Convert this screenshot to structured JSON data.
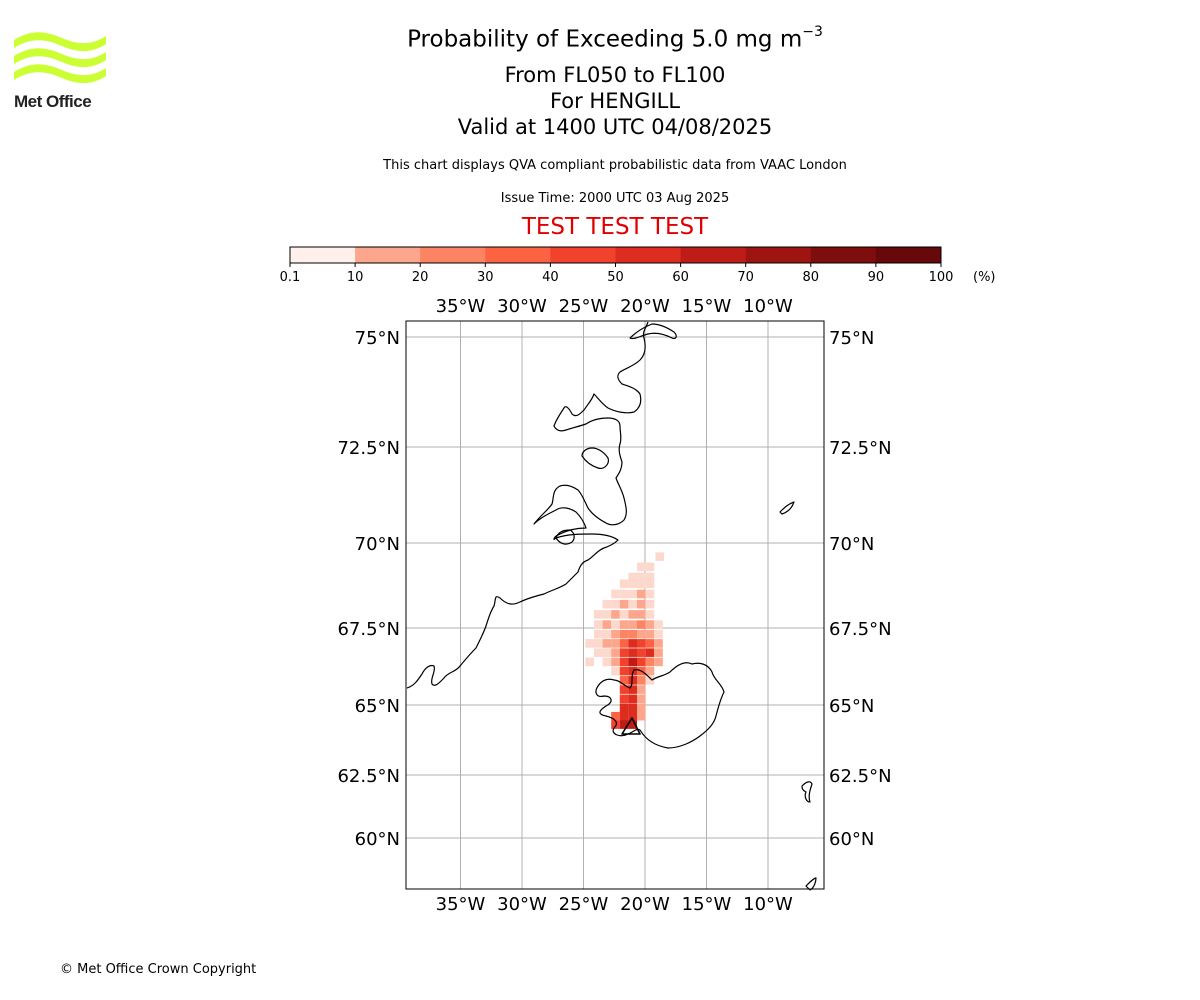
{
  "header": {
    "title_main": "Probability of Exceeding 5.0 mg m",
    "title_sup": "−3",
    "flight_levels": "From FL050 to FL100",
    "volcano": "For HENGILL",
    "valid_time": "Valid at 1400 UTC 04/08/2025",
    "description": "This chart displays QVA compliant probabilistic data from VAAC London",
    "issue_time": "Issue Time: 2000 UTC 03 Aug 2025",
    "test_banner": "TEST TEST TEST"
  },
  "logo": {
    "text": "Met Office",
    "color": "#ccff33"
  },
  "colorbar": {
    "labels": [
      "0.1",
      "10",
      "20",
      "30",
      "40",
      "50",
      "60",
      "70",
      "80",
      "90",
      "100"
    ],
    "unit": "(%)",
    "colors": [
      "#fff0eb",
      "#fcc8b6",
      "#fca68d",
      "#fb8463",
      "#fb6343",
      "#f0422c",
      "#dc2d1f",
      "#bd1c17",
      "#9e1411",
      "#7e0d0d",
      "#67080a"
    ]
  },
  "map": {
    "lon_labels": [
      "35°W",
      "30°W",
      "25°W",
      "20°W",
      "15°W",
      "10°W"
    ],
    "lon_values": [
      -35,
      -30,
      -25,
      -20,
      -15,
      -10
    ],
    "lat_labels": [
      "75°N",
      "72.5°N",
      "70°N",
      "67.5°N",
      "65°N",
      "62.5°N",
      "60°N"
    ],
    "lat_values": [
      75,
      72.5,
      70,
      67.5,
      65,
      62.5,
      60
    ],
    "extent": {
      "lon_min": -39.4,
      "lon_max": -5.6,
      "lat_min": 58.5,
      "lat_max": 75.5
    },
    "plume": [
      {
        "lon": -18.8,
        "lat": 69.6,
        "p": 8
      },
      {
        "lon": -19.6,
        "lat": 69.3,
        "p": 6
      },
      {
        "lon": -20.3,
        "lat": 69.3,
        "p": 5
      },
      {
        "lon": -20.3,
        "lat": 69.0,
        "p": 6
      },
      {
        "lon": -21.0,
        "lat": 69.0,
        "p": 4
      },
      {
        "lon": -19.6,
        "lat": 69.0,
        "p": 5
      },
      {
        "lon": -21.7,
        "lat": 68.8,
        "p": 4
      },
      {
        "lon": -21.0,
        "lat": 68.8,
        "p": 6
      },
      {
        "lon": -20.3,
        "lat": 68.8,
        "p": 8
      },
      {
        "lon": -19.6,
        "lat": 68.8,
        "p": 4
      },
      {
        "lon": -22.4,
        "lat": 68.5,
        "p": 3
      },
      {
        "lon": -21.7,
        "lat": 68.5,
        "p": 7
      },
      {
        "lon": -21.0,
        "lat": 68.5,
        "p": 9
      },
      {
        "lon": -20.3,
        "lat": 68.5,
        "p": 12
      },
      {
        "lon": -19.6,
        "lat": 68.5,
        "p": 6
      },
      {
        "lon": -23.1,
        "lat": 68.2,
        "p": 3
      },
      {
        "lon": -22.4,
        "lat": 68.2,
        "p": 5
      },
      {
        "lon": -21.7,
        "lat": 68.2,
        "p": 12
      },
      {
        "lon": -21.0,
        "lat": 68.2,
        "p": 9
      },
      {
        "lon": -20.3,
        "lat": 68.2,
        "p": 14
      },
      {
        "lon": -19.6,
        "lat": 68.2,
        "p": 8
      },
      {
        "lon": -23.8,
        "lat": 67.9,
        "p": 3
      },
      {
        "lon": -23.1,
        "lat": 67.9,
        "p": 6
      },
      {
        "lon": -22.4,
        "lat": 67.9,
        "p": 10
      },
      {
        "lon": -21.7,
        "lat": 67.9,
        "p": 8
      },
      {
        "lon": -21.0,
        "lat": 67.9,
        "p": 18
      },
      {
        "lon": -20.3,
        "lat": 67.9,
        "p": 12
      },
      {
        "lon": -19.6,
        "lat": 67.9,
        "p": 9
      },
      {
        "lon": -23.8,
        "lat": 67.6,
        "p": 5
      },
      {
        "lon": -23.1,
        "lat": 67.6,
        "p": 14
      },
      {
        "lon": -22.4,
        "lat": 67.6,
        "p": 9
      },
      {
        "lon": -21.7,
        "lat": 67.6,
        "p": 16
      },
      {
        "lon": -21.0,
        "lat": 67.6,
        "p": 12
      },
      {
        "lon": -20.3,
        "lat": 67.6,
        "p": 22
      },
      {
        "lon": -19.6,
        "lat": 67.6,
        "p": 10
      },
      {
        "lon": -18.9,
        "lat": 67.6,
        "p": 5
      },
      {
        "lon": -23.8,
        "lat": 67.3,
        "p": 4
      },
      {
        "lon": -23.1,
        "lat": 67.3,
        "p": 8
      },
      {
        "lon": -22.4,
        "lat": 67.3,
        "p": 14
      },
      {
        "lon": -21.7,
        "lat": 67.3,
        "p": 22
      },
      {
        "lon": -21.0,
        "lat": 67.3,
        "p": 28
      },
      {
        "lon": -20.3,
        "lat": 67.3,
        "p": 18
      },
      {
        "lon": -19.6,
        "lat": 67.3,
        "p": 12
      },
      {
        "lon": -18.9,
        "lat": 67.3,
        "p": 6
      },
      {
        "lon": -24.5,
        "lat": 67.0,
        "p": 3
      },
      {
        "lon": -23.8,
        "lat": 67.0,
        "p": 6
      },
      {
        "lon": -23.1,
        "lat": 67.0,
        "p": 10
      },
      {
        "lon": -22.4,
        "lat": 67.0,
        "p": 16
      },
      {
        "lon": -21.7,
        "lat": 67.0,
        "p": 38
      },
      {
        "lon": -21.0,
        "lat": 67.0,
        "p": 52
      },
      {
        "lon": -20.3,
        "lat": 67.0,
        "p": 46
      },
      {
        "lon": -19.6,
        "lat": 67.0,
        "p": 34
      },
      {
        "lon": -18.9,
        "lat": 67.0,
        "p": 12
      },
      {
        "lon": -23.8,
        "lat": 66.7,
        "p": 4
      },
      {
        "lon": -23.1,
        "lat": 66.7,
        "p": 8
      },
      {
        "lon": -22.4,
        "lat": 66.7,
        "p": 12
      },
      {
        "lon": -21.7,
        "lat": 66.7,
        "p": 44
      },
      {
        "lon": -21.0,
        "lat": 66.7,
        "p": 56
      },
      {
        "lon": -20.3,
        "lat": 66.7,
        "p": 48
      },
      {
        "lon": -19.6,
        "lat": 66.7,
        "p": 58
      },
      {
        "lon": -18.9,
        "lat": 66.7,
        "p": 14
      },
      {
        "lon": -24.5,
        "lat": 66.4,
        "p": 5
      },
      {
        "lon": -23.1,
        "lat": 66.4,
        "p": 6
      },
      {
        "lon": -22.4,
        "lat": 66.4,
        "p": 14
      },
      {
        "lon": -21.7,
        "lat": 66.4,
        "p": 46
      },
      {
        "lon": -21.0,
        "lat": 66.4,
        "p": 62
      },
      {
        "lon": -20.3,
        "lat": 66.4,
        "p": 44
      },
      {
        "lon": -19.6,
        "lat": 66.4,
        "p": 22
      },
      {
        "lon": -18.9,
        "lat": 66.4,
        "p": 10
      },
      {
        "lon": -22.4,
        "lat": 66.1,
        "p": 8
      },
      {
        "lon": -21.7,
        "lat": 66.1,
        "p": 42
      },
      {
        "lon": -21.0,
        "lat": 66.1,
        "p": 58
      },
      {
        "lon": -20.3,
        "lat": 66.1,
        "p": 32
      },
      {
        "lon": -19.6,
        "lat": 66.1,
        "p": 12
      },
      {
        "lon": -21.7,
        "lat": 65.8,
        "p": 38
      },
      {
        "lon": -21.0,
        "lat": 65.8,
        "p": 56
      },
      {
        "lon": -20.3,
        "lat": 65.8,
        "p": 22
      },
      {
        "lon": -19.6,
        "lat": 65.8,
        "p": 8
      },
      {
        "lon": -21.7,
        "lat": 65.5,
        "p": 42
      },
      {
        "lon": -21.0,
        "lat": 65.5,
        "p": 55
      },
      {
        "lon": -20.3,
        "lat": 65.5,
        "p": 16
      },
      {
        "lon": -21.7,
        "lat": 65.2,
        "p": 46
      },
      {
        "lon": -21.0,
        "lat": 65.2,
        "p": 52
      },
      {
        "lon": -20.3,
        "lat": 65.2,
        "p": 14
      },
      {
        "lon": -21.7,
        "lat": 64.9,
        "p": 50
      },
      {
        "lon": -21.0,
        "lat": 64.9,
        "p": 56
      },
      {
        "lon": -20.3,
        "lat": 64.9,
        "p": 12
      },
      {
        "lon": -22.4,
        "lat": 64.6,
        "p": 30
      },
      {
        "lon": -21.7,
        "lat": 64.6,
        "p": 55
      },
      {
        "lon": -21.0,
        "lat": 64.6,
        "p": 58
      },
      {
        "lon": -20.3,
        "lat": 64.6,
        "p": 10
      },
      {
        "lon": -22.4,
        "lat": 64.3,
        "p": 40
      },
      {
        "lon": -21.7,
        "lat": 64.3,
        "p": 62
      },
      {
        "lon": -21.0,
        "lat": 64.3,
        "p": 60
      }
    ]
  },
  "footer": {
    "copyright": "© Met Office Crown Copyright"
  }
}
